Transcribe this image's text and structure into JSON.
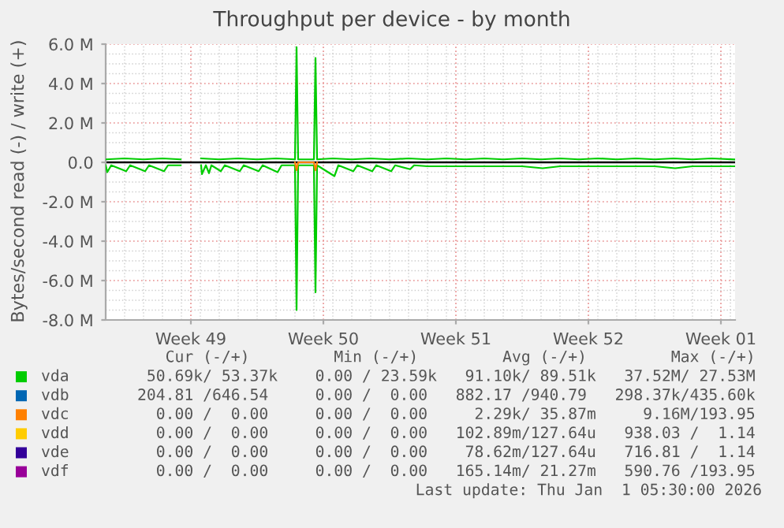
{
  "chart_data": {
    "type": "line",
    "title": "Throughput per device - by month",
    "ylabel": "Bytes/second read (-) / write (+)",
    "xlim": [
      "2025-11-30T00:00",
      "2026-01-02T06:00"
    ],
    "xticks": [
      {
        "value": "2025-12-04T12:00",
        "label": "Week 49"
      },
      {
        "value": "2025-12-11T12:00",
        "label": "Week 50"
      },
      {
        "value": "2025-12-18T12:00",
        "label": "Week 51"
      },
      {
        "value": "2025-12-25T12:00",
        "label": "Week 52"
      },
      {
        "value": "2026-01-01T12:00",
        "label": "Week 01"
      }
    ],
    "ylim": [
      -8,
      6
    ],
    "yticks": [
      {
        "value": 6,
        "label": "6.0 M"
      },
      {
        "value": 4,
        "label": "4.0 M"
      },
      {
        "value": 2,
        "label": "2.0 M"
      },
      {
        "value": 0,
        "label": "0.0"
      },
      {
        "value": -2,
        "label": "-2.0 M"
      },
      {
        "value": -4,
        "label": "-4.0 M"
      },
      {
        "value": -6,
        "label": "-6.0 M"
      },
      {
        "value": -8,
        "label": "-8.0 M"
      }
    ],
    "grid": true,
    "legend": "bottom",
    "marker": "none",
    "line_style": "solid",
    "ref_lines": [
      {
        "axis": "y",
        "value": 0,
        "label": null,
        "color": "#000000"
      }
    ],
    "series": [
      {
        "name": "vda",
        "color": "#00cc00",
        "x": [
          "2025-11-30T00:00",
          "2025-12-01T00:00",
          "2025-12-02T00:00",
          "2025-12-03T00:00",
          "2025-12-03T23:00",
          "2025-12-04T12:00",
          "2025-12-05T01:00",
          "2025-12-06T00:00",
          "2025-12-07T00:00",
          "2025-12-08T00:00",
          "2025-12-09T00:00",
          "2025-12-10T00:00",
          "2025-12-10T02:00",
          "2025-12-10T04:00",
          "2025-12-11T00:00",
          "2025-12-11T02:00",
          "2025-12-11T04:00",
          "2025-12-12T00:00",
          "2025-12-13T00:00",
          "2025-12-14T00:00",
          "2025-12-15T00:00",
          "2025-12-16T00:00",
          "2025-12-17T00:00",
          "2025-12-18T00:00",
          "2025-12-19T00:00",
          "2025-12-20T00:00",
          "2025-12-21T00:00",
          "2025-12-22T00:00",
          "2025-12-23T00:00",
          "2025-12-24T00:00",
          "2025-12-25T00:00",
          "2025-12-26T00:00",
          "2025-12-27T00:00",
          "2025-12-28T00:00",
          "2025-12-29T00:00",
          "2025-12-30T00:00",
          "2025-12-31T00:00",
          "2026-01-01T00:00",
          "2026-01-02T05:00"
        ],
        "values": [
          0.15,
          0.2,
          0.15,
          0.2,
          0.15,
          null,
          0.2,
          0.15,
          0.2,
          0.15,
          0.2,
          0.15,
          5.85,
          0.15,
          0.15,
          5.3,
          0.15,
          0.2,
          0.15,
          0.2,
          0.15,
          0.2,
          0.15,
          0.2,
          0.15,
          0.2,
          0.15,
          0.2,
          0.15,
          0.2,
          0.15,
          0.2,
          0.15,
          0.2,
          0.15,
          0.2,
          0.15,
          0.2,
          0.15
        ]
      },
      {
        "color": "#00cc00",
        "x": [
          "2025-11-30T00:00",
          "2025-11-30T02:00",
          "2025-11-30T07:00",
          "2025-12-01T02:00",
          "2025-12-01T07:00",
          "2025-12-02T02:00",
          "2025-12-02T07:00",
          "2025-12-03T02:00",
          "2025-12-03T07:00",
          "2025-12-03T23:00",
          "2025-12-04T12:00",
          "2025-12-05T01:00",
          "2025-12-05T02:00",
          "2025-12-05T07:00",
          "2025-12-05T11:00",
          "2025-12-05T14:00",
          "2025-12-06T02:00",
          "2025-12-06T07:00",
          "2025-12-07T02:00",
          "2025-12-07T07:00",
          "2025-12-08T02:00",
          "2025-12-08T07:00",
          "2025-12-09T02:00",
          "2025-12-09T07:00",
          "2025-12-10T00:00",
          "2025-12-10T02:00",
          "2025-12-10T04:00",
          "2025-12-11T00:00",
          "2025-12-11T02:00",
          "2025-12-11T04:00",
          "2025-12-12T02:00",
          "2025-12-12T07:00",
          "2025-12-13T02:00",
          "2025-12-13T07:00",
          "2025-12-14T02:00",
          "2025-12-14T07:00",
          "2025-12-15T02:00",
          "2025-12-15T07:00",
          "2025-12-16T02:00",
          "2025-12-16T07:00",
          "2025-12-17T00:00",
          "2025-12-18T00:00",
          "2025-12-19T00:00",
          "2025-12-20T00:00",
          "2025-12-21T00:00",
          "2025-12-22T00:00",
          "2025-12-23T02:00",
          "2025-12-24T00:00",
          "2025-12-25T00:00",
          "2025-12-26T00:00",
          "2025-12-27T00:00",
          "2025-12-28T00:00",
          "2025-12-29T00:00",
          "2025-12-30T02:00",
          "2025-12-31T00:00",
          "2026-01-01T00:00",
          "2026-01-02T05:00"
        ],
        "values": [
          -0.15,
          -0.5,
          -0.15,
          -0.45,
          -0.15,
          -0.45,
          -0.15,
          -0.45,
          -0.15,
          -0.15,
          null,
          -0.15,
          -0.6,
          -0.15,
          -0.55,
          -0.15,
          -0.45,
          -0.15,
          -0.45,
          -0.15,
          -0.45,
          -0.15,
          -0.5,
          -0.15,
          -0.15,
          -7.5,
          -0.15,
          -0.15,
          -6.6,
          -0.15,
          -0.7,
          -0.15,
          -0.45,
          -0.15,
          -0.45,
          -0.15,
          -0.45,
          -0.15,
          -0.35,
          -0.15,
          -0.2,
          -0.2,
          -0.2,
          -0.2,
          -0.2,
          -0.2,
          -0.3,
          -0.2,
          -0.2,
          -0.2,
          -0.2,
          -0.2,
          -0.2,
          -0.3,
          -0.2,
          -0.2,
          -0.2
        ]
      },
      {
        "name": "vdb",
        "color": "#0066b3"
      },
      {
        "name": "vdc",
        "color": "#ff8000",
        "x": [
          "2025-12-10T00:00",
          "2025-12-10T02:00",
          "2025-12-10T04:00",
          "2025-12-11T00:00",
          "2025-12-11T02:00",
          "2025-12-11T04:00"
        ],
        "values": [
          0,
          -0.4,
          0,
          0,
          -0.4,
          0
        ]
      },
      {
        "name": "vdd",
        "color": "#ffcc00"
      },
      {
        "name": "vde",
        "color": "#330099"
      },
      {
        "name": "vdf",
        "color": "#990099"
      }
    ],
    "annotations": [
      "   Cur (-/+)         Min (-/+)         Avg (-/+)         Max (-/+)",
      " 50.69k/ 53.37k    0.00 / 23.59k   91.10k/ 89.51k   37.52M/ 27.53M",
      "204.81 /646.54     0.00 /  0.00   882.17 /940.79   298.37k/435.60k",
      "  0.00 /  0.00     0.00 /  0.00     2.29k/ 35.87m     9.16M/193.95",
      "  0.00 /  0.00     0.00 /  0.00   102.89m/127.64u   938.03 /  1.14",
      "  0.00 /  0.00     0.00 /  0.00    78.62m/127.64u   716.81 /  1.14",
      "  0.00 /  0.00     0.00 /  0.00   165.14m/ 21.27m   590.76 /193.95",
      "Last update: Thu Jan  1 05:30:00 2026"
    ]
  }
}
